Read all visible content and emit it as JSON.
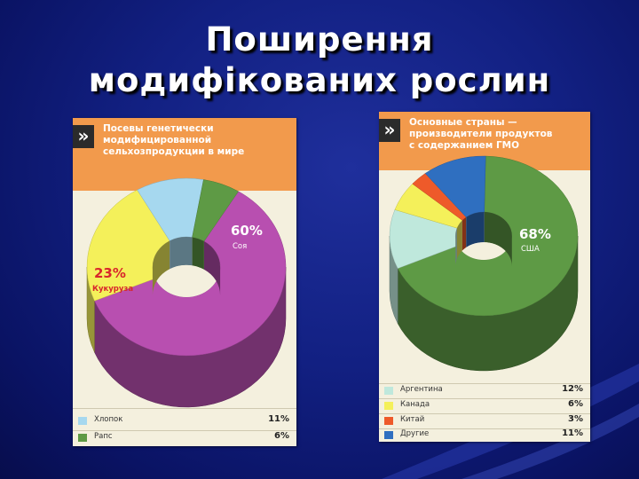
{
  "slide": {
    "title_line1": "Поширення",
    "title_line2": "модифікованих рослин"
  },
  "colors": {
    "background": "#122082",
    "panel": "#f4f0de",
    "header": "#f29a4c",
    "soy": "#b84fb0",
    "corn": "#f4f05a",
    "cotton": "#a6d8ef",
    "rapeseed": "#5e9a45",
    "usa": "#5e9a45",
    "argentina": "#bfe8dc",
    "canada": "#f4f05a",
    "china": "#ee5a2a",
    "other": "#2f6fc0"
  },
  "chart_data": [
    {
      "type": "pie",
      "title": "Посевы генетически модифицированной сельхозпродукции в мире",
      "title_lines": [
        "Посевы генетически",
        "модифицированной",
        "сельхозпродукции в мире"
      ],
      "slices": [
        {
          "label": "Соя",
          "value": 60,
          "value_label": "60%",
          "color": "#b84fb0"
        },
        {
          "label": "Кукуруза",
          "value": 23,
          "value_label": "23%",
          "color": "#f4f05a"
        },
        {
          "label": "Хлопок",
          "value": 11,
          "value_label": "11%",
          "color": "#a6d8ef"
        },
        {
          "label": "Рапс",
          "value": 6,
          "value_label": "6%",
          "color": "#5e9a45"
        }
      ],
      "legend_entries": [
        {
          "label": "Хлопок",
          "value_label": "11%",
          "color": "#a6d8ef"
        },
        {
          "label": "Рапс",
          "value_label": "6%",
          "color": "#5e9a45"
        }
      ],
      "legend_placement": "bottom"
    },
    {
      "type": "pie",
      "title": "Основные страны — производители продуктов с содержанием ГМО",
      "title_lines": [
        "Основные страны —",
        "производители продуктов",
        "с содержанием ГМО"
      ],
      "slices": [
        {
          "label": "США",
          "value": 68,
          "value_label": "68%",
          "color": "#5e9a45"
        },
        {
          "label": "Аргентина",
          "value": 12,
          "value_label": "12%",
          "color": "#bfe8dc"
        },
        {
          "label": "Канада",
          "value": 6,
          "value_label": "6%",
          "color": "#f4f05a"
        },
        {
          "label": "Китай",
          "value": 3,
          "value_label": "3%",
          "color": "#ee5a2a"
        },
        {
          "label": "Другие",
          "value": 11,
          "value_label": "11%",
          "color": "#2f6fc0"
        }
      ],
      "legend_entries": [
        {
          "label": "Аргентина",
          "value_label": "12%",
          "color": "#bfe8dc"
        },
        {
          "label": "Канада",
          "value_label": "6%",
          "color": "#f4f05a"
        },
        {
          "label": "Китай",
          "value_label": "3%",
          "color": "#ee5a2a"
        },
        {
          "label": "Другие",
          "value_label": "11%",
          "color": "#2f6fc0"
        }
      ],
      "legend_placement": "bottom"
    }
  ]
}
